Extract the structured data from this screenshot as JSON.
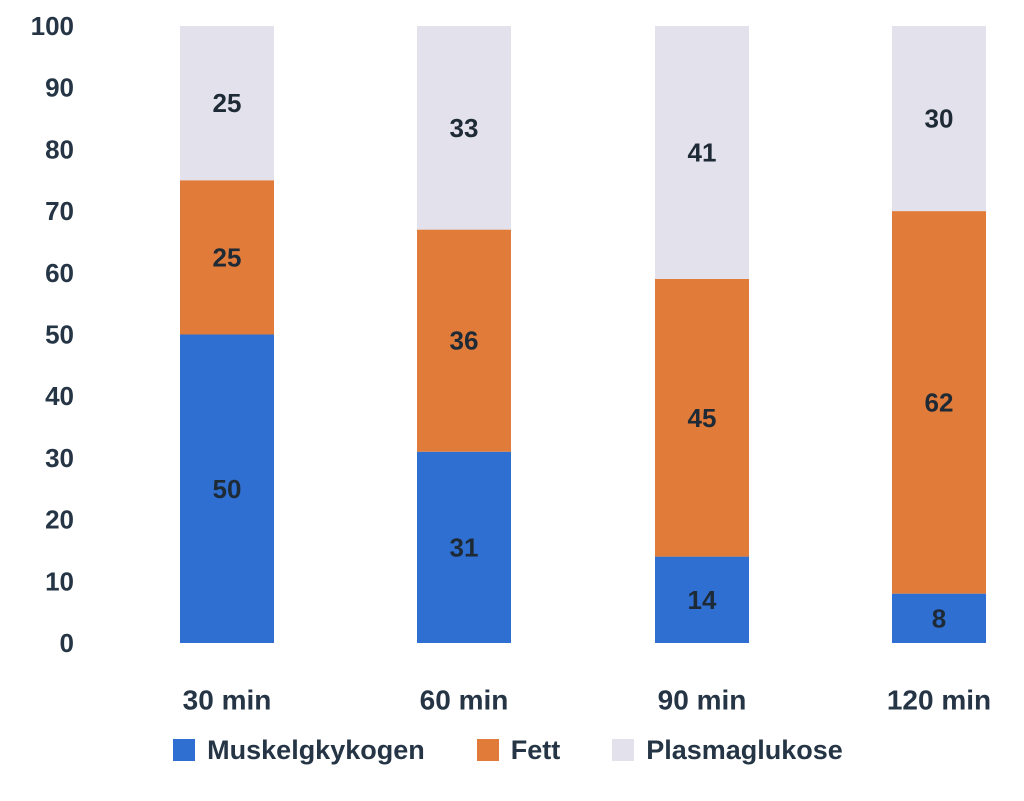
{
  "chart_data": {
    "type": "bar",
    "stacked": true,
    "categories": [
      "30 min",
      "60 min",
      "90 min",
      "120 min"
    ],
    "series": [
      {
        "name": "Muskelgkykogen",
        "color": "#2f6fd1",
        "values": [
          50,
          31,
          14,
          8
        ]
      },
      {
        "name": "Fett",
        "color": "#e07b3a",
        "values": [
          25,
          36,
          45,
          62
        ]
      },
      {
        "name": "Plasmaglukose",
        "color": "#e3e1ec",
        "values": [
          25,
          33,
          41,
          30
        ]
      }
    ],
    "ylim": [
      0,
      100
    ],
    "yticks": [
      "0",
      "10",
      "20",
      "30",
      "40",
      "50",
      "60",
      "70",
      "80",
      "90",
      "100"
    ],
    "grid": false,
    "legend_position": "bottom",
    "data_labels": true
  }
}
